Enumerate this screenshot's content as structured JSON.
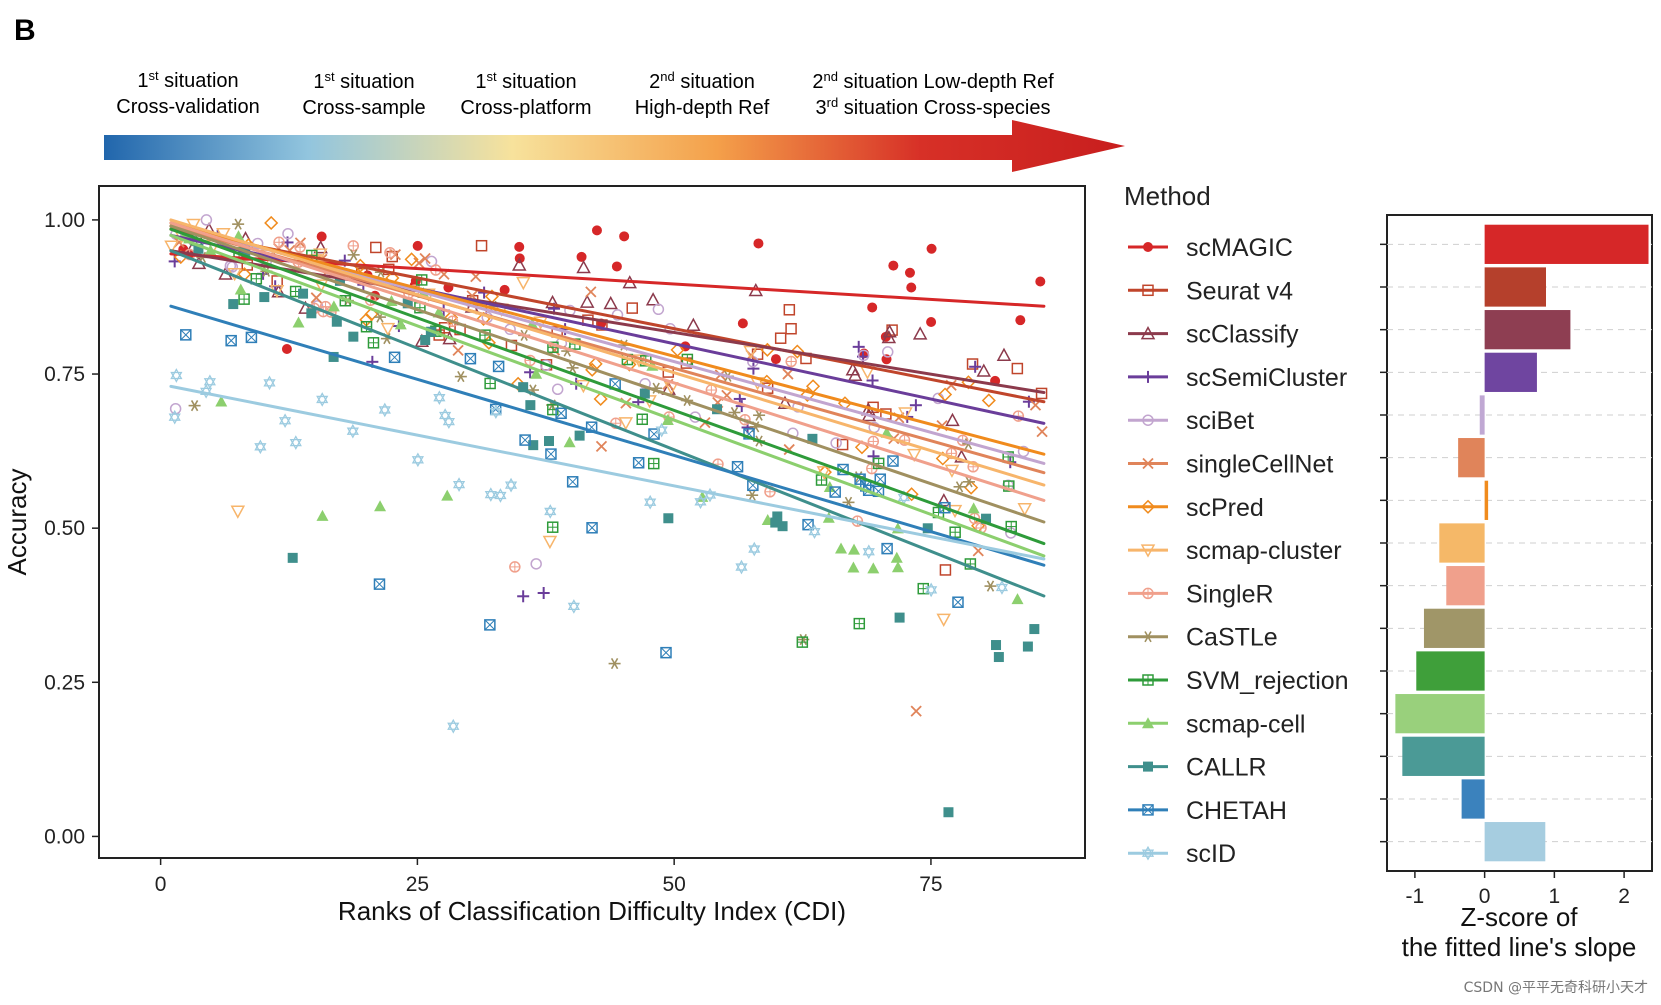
{
  "panel_label": "B",
  "watermark": "CSDN @平平无奇科研小天才",
  "situations": [
    {
      "l1_num": "1",
      "l1_sup": "st",
      "l1_rest": " situation",
      "l2": "Cross-validation"
    },
    {
      "l1_num": "1",
      "l1_sup": "st",
      "l1_rest": " situation",
      "l2": "Cross-sample"
    },
    {
      "l1_num": "1",
      "l1_sup": "st",
      "l1_rest": " situation",
      "l2": "Cross-platform"
    },
    {
      "l1_num": "2",
      "l1_sup": "nd",
      "l1_rest": " situation",
      "l2": "High-depth Ref"
    },
    {
      "l1_num": "2",
      "l1_sup": "nd",
      "l1_rest": " situation Low-depth Ref",
      "l2_num": "3",
      "l2_sup": "rd",
      "l2": " situation Cross-species"
    }
  ],
  "gradient_colors": [
    "#2166ac",
    "#92c5de",
    "#f7e29c",
    "#f4a04a",
    "#d73027",
    "#c81e1e"
  ],
  "chart_data": [
    {
      "type": "scatter",
      "title": "",
      "xlabel": "Ranks of Classification Difficulty Index (CDI)",
      "ylabel": "Accuracy",
      "xlim": [
        -6,
        90
      ],
      "ylim": [
        -0.035,
        1.055
      ],
      "xticks": [
        0,
        25,
        50,
        75
      ],
      "yticks": [
        0.0,
        0.25,
        0.5,
        0.75,
        1.0
      ],
      "ytick_labels": [
        "0.00",
        "0.25",
        "0.50",
        "0.75",
        "1.00"
      ],
      "legend_title": "Method",
      "fit_x_range": [
        1,
        86
      ],
      "series": [
        {
          "name": "scMAGIC",
          "color": "#d62728",
          "marker": "circle-filled",
          "fit": [
            0.945,
            0.86
          ]
        },
        {
          "name": "Seurat v4",
          "color": "#c0452b",
          "marker": "square-open",
          "fit": [
            0.985,
            0.705
          ]
        },
        {
          "name": "scClassify",
          "color": "#8c3a4c",
          "marker": "triangle-open",
          "fit": [
            0.95,
            0.72
          ]
        },
        {
          "name": "scSemiCluster",
          "color": "#6a3d9a",
          "marker": "plus",
          "fit": [
            0.975,
            0.67
          ]
        },
        {
          "name": "sciBet",
          "color": "#c2a5cf",
          "marker": "circle-open",
          "fit": [
            0.995,
            0.605
          ]
        },
        {
          "name": "singleCellNet",
          "color": "#e0845a",
          "marker": "x",
          "fit": [
            0.99,
            0.59
          ]
        },
        {
          "name": "scPred",
          "color": "#f08b1d",
          "marker": "diamond-open",
          "fit": [
            0.995,
            0.62
          ]
        },
        {
          "name": "scmap-cluster",
          "color": "#f7b56b",
          "marker": "tri-down-open",
          "fit": [
            1.0,
            0.57
          ]
        },
        {
          "name": "SingleR",
          "color": "#f0a08c",
          "marker": "circle-plus",
          "fit": [
            0.995,
            0.545
          ]
        },
        {
          "name": "CaSTLe",
          "color": "#a09060",
          "marker": "asterisk",
          "fit": [
            0.99,
            0.51
          ]
        },
        {
          "name": "SVM_rejection",
          "color": "#2e9b3a",
          "marker": "square-plus",
          "fit": [
            0.985,
            0.475
          ]
        },
        {
          "name": "scmap-cell",
          "color": "#8ccf6e",
          "marker": "triangle-filled",
          "fit": [
            0.975,
            0.455
          ]
        },
        {
          "name": "CALLR",
          "color": "#3f8f8c",
          "marker": "square-filled",
          "fit": [
            0.95,
            0.39
          ]
        },
        {
          "name": "CHETAH",
          "color": "#2f7fb8",
          "marker": "square-x",
          "fit": [
            0.86,
            0.44
          ]
        },
        {
          "name": "scID",
          "color": "#9ccbe0",
          "marker": "hexagram",
          "fit": [
            0.73,
            0.45
          ]
        }
      ],
      "points_note": "Scatter point positions per series are generated procedurally around each fitted line for display."
    },
    {
      "type": "bar",
      "orientation": "horizontal",
      "title": "",
      "xlabel_line1": "Z-score of",
      "xlabel_line2": "the fitted line's slope",
      "xlim": [
        -1.4,
        2.4
      ],
      "xticks": [
        -1,
        0,
        1,
        2
      ],
      "xtick_labels": [
        "-1",
        "0",
        "1",
        "2"
      ],
      "categories": [
        "scMAGIC",
        "Seurat v4",
        "scClassify",
        "scSemiCluster",
        "sciBet",
        "singleCellNet",
        "scPred",
        "scmap-cluster",
        "SingleR",
        "CaSTLe",
        "SVM_rejection",
        "scmap-cell",
        "CALLR",
        "CHETAH",
        "scID"
      ],
      "values": [
        2.35,
        0.88,
        1.23,
        0.75,
        -0.07,
        -0.38,
        0.05,
        -0.65,
        -0.55,
        -0.87,
        -0.98,
        -1.28,
        -1.18,
        -0.33,
        0.87
      ],
      "colors": [
        "#d62728",
        "#b5402c",
        "#8e3e52",
        "#6f45a0",
        "#c0a8d3",
        "#e0845a",
        "#f08b1d",
        "#f5b868",
        "#f0a08c",
        "#a09668",
        "#3f9f3a",
        "#99d07c",
        "#4b9a96",
        "#3b82bd",
        "#a6cde0"
      ]
    }
  ]
}
